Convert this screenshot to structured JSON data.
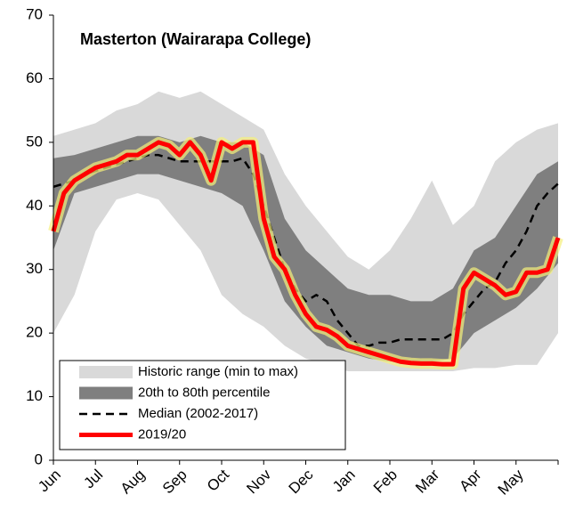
{
  "chart_data": {
    "type": "line",
    "title": "Masterton (Wairarapa College)",
    "xlim": [
      0,
      12
    ],
    "xticks": [
      {
        "value": 0,
        "label": "Jun"
      },
      {
        "value": 1,
        "label": "Jul"
      },
      {
        "value": 2,
        "label": "Aug"
      },
      {
        "value": 3,
        "label": "Sep"
      },
      {
        "value": 4,
        "label": "Oct"
      },
      {
        "value": 5,
        "label": "Nov"
      },
      {
        "value": 6,
        "label": "Dec"
      },
      {
        "value": 7,
        "label": "Jan"
      },
      {
        "value": 8,
        "label": "Feb"
      },
      {
        "value": 9,
        "label": "Mar"
      },
      {
        "value": 10,
        "label": "Apr"
      },
      {
        "value": 11,
        "label": "May"
      }
    ],
    "ylim": [
      0,
      70
    ],
    "yticks": [
      0,
      10,
      20,
      30,
      40,
      50,
      60,
      70
    ],
    "grid": false,
    "legend": "lower left",
    "series": [
      {
        "name": "Historic range (min to max)",
        "type": "band",
        "color": "#d9d9d9",
        "x": [
          0,
          0.5,
          1,
          1.5,
          2,
          2.5,
          3,
          3.5,
          4,
          4.5,
          5,
          5.5,
          6,
          6.5,
          7,
          7.5,
          8,
          8.5,
          9,
          9.5,
          10,
          10.5,
          11,
          11.5,
          12
        ],
        "upper": [
          51,
          52,
          53,
          55,
          56,
          58,
          57,
          58,
          56,
          54,
          52,
          45,
          40,
          36,
          32,
          30,
          33,
          38,
          44,
          37,
          40,
          47,
          50,
          52,
          53
        ],
        "lower": [
          20,
          26,
          36,
          41,
          42,
          41,
          37,
          33,
          26,
          23,
          21,
          18,
          16,
          15,
          14,
          14,
          14,
          14,
          14,
          14,
          14.5,
          14.5,
          15,
          15,
          20
        ]
      },
      {
        "name": "20th to 80th percentile",
        "type": "band",
        "color": "#7f7f7f",
        "x": [
          0,
          0.5,
          1,
          1.5,
          2,
          2.5,
          3,
          3.5,
          4,
          4.5,
          5,
          5.5,
          6,
          6.5,
          7,
          7.5,
          8,
          8.5,
          9,
          9.5,
          10,
          10.5,
          11,
          11.5,
          12
        ],
        "upper": [
          47.5,
          48,
          49,
          50,
          51,
          51,
          50,
          51,
          50,
          50,
          48,
          38,
          33,
          30,
          27,
          26,
          26,
          25,
          25,
          27,
          33,
          35,
          40,
          45,
          47
        ],
        "lower": [
          33,
          42,
          43,
          44,
          45,
          45,
          44,
          43,
          42,
          40,
          33,
          25,
          21,
          18,
          17,
          16,
          15.5,
          15.5,
          15.5,
          16,
          20,
          22,
          24,
          27,
          31
        ]
      },
      {
        "name": "Median (2002-2017)",
        "type": "dashed",
        "color": "#000000",
        "x": [
          0,
          0.25,
          0.5,
          0.75,
          1,
          1.25,
          1.5,
          1.75,
          2,
          2.25,
          2.5,
          2.75,
          3,
          3.25,
          3.5,
          3.75,
          4,
          4.25,
          4.5,
          4.75,
          5,
          5.25,
          5.5,
          5.75,
          6,
          6.25,
          6.5,
          6.75,
          7,
          7.25,
          7.5,
          7.75,
          8,
          8.25,
          8.5,
          8.75,
          9,
          9.25,
          9.5,
          9.75,
          10,
          10.25,
          10.5,
          10.75,
          11,
          11.25,
          11.5,
          11.75,
          12
        ],
        "values": [
          43,
          43.5,
          44,
          45,
          45.5,
          46,
          46.5,
          47,
          47.5,
          48,
          48,
          47.5,
          47,
          47,
          47,
          47,
          47,
          47,
          47.5,
          45,
          40,
          35,
          30,
          27,
          25,
          26,
          25,
          22,
          20,
          18,
          18,
          18.5,
          18.5,
          19,
          19,
          19,
          19,
          19,
          20,
          23,
          25,
          27,
          28,
          31,
          33,
          36,
          40,
          42,
          43.5
        ]
      },
      {
        "name": "2019/20",
        "type": "highlight",
        "color": "#ff0000",
        "x": [
          0,
          0.25,
          0.5,
          0.75,
          1,
          1.25,
          1.5,
          1.75,
          2,
          2.25,
          2.5,
          2.75,
          3,
          3.25,
          3.5,
          3.75,
          4,
          4.25,
          4.5,
          4.75,
          5,
          5.25,
          5.5,
          5.75,
          6,
          6.25,
          6.5,
          6.75,
          7,
          7.25,
          7.5,
          7.75,
          8,
          8.25,
          8.5,
          8.75,
          9,
          9.25,
          9.5,
          9.75,
          10,
          10.25,
          10.5,
          10.75,
          11,
          11.25,
          11.5,
          11.75,
          12
        ],
        "values": [
          36,
          42,
          44,
          45,
          46,
          46.5,
          47,
          48,
          48,
          49,
          50,
          49.5,
          48,
          50,
          48,
          44,
          50,
          49,
          50,
          50,
          38,
          32,
          30,
          26,
          23,
          21,
          20.5,
          19.5,
          18,
          17.5,
          17,
          16.5,
          16,
          15.5,
          15.3,
          15.2,
          15.2,
          15.1,
          15.1,
          27,
          29.5,
          28.5,
          27.5,
          26,
          26.5,
          29.5,
          29.5,
          30,
          35
        ]
      }
    ]
  }
}
